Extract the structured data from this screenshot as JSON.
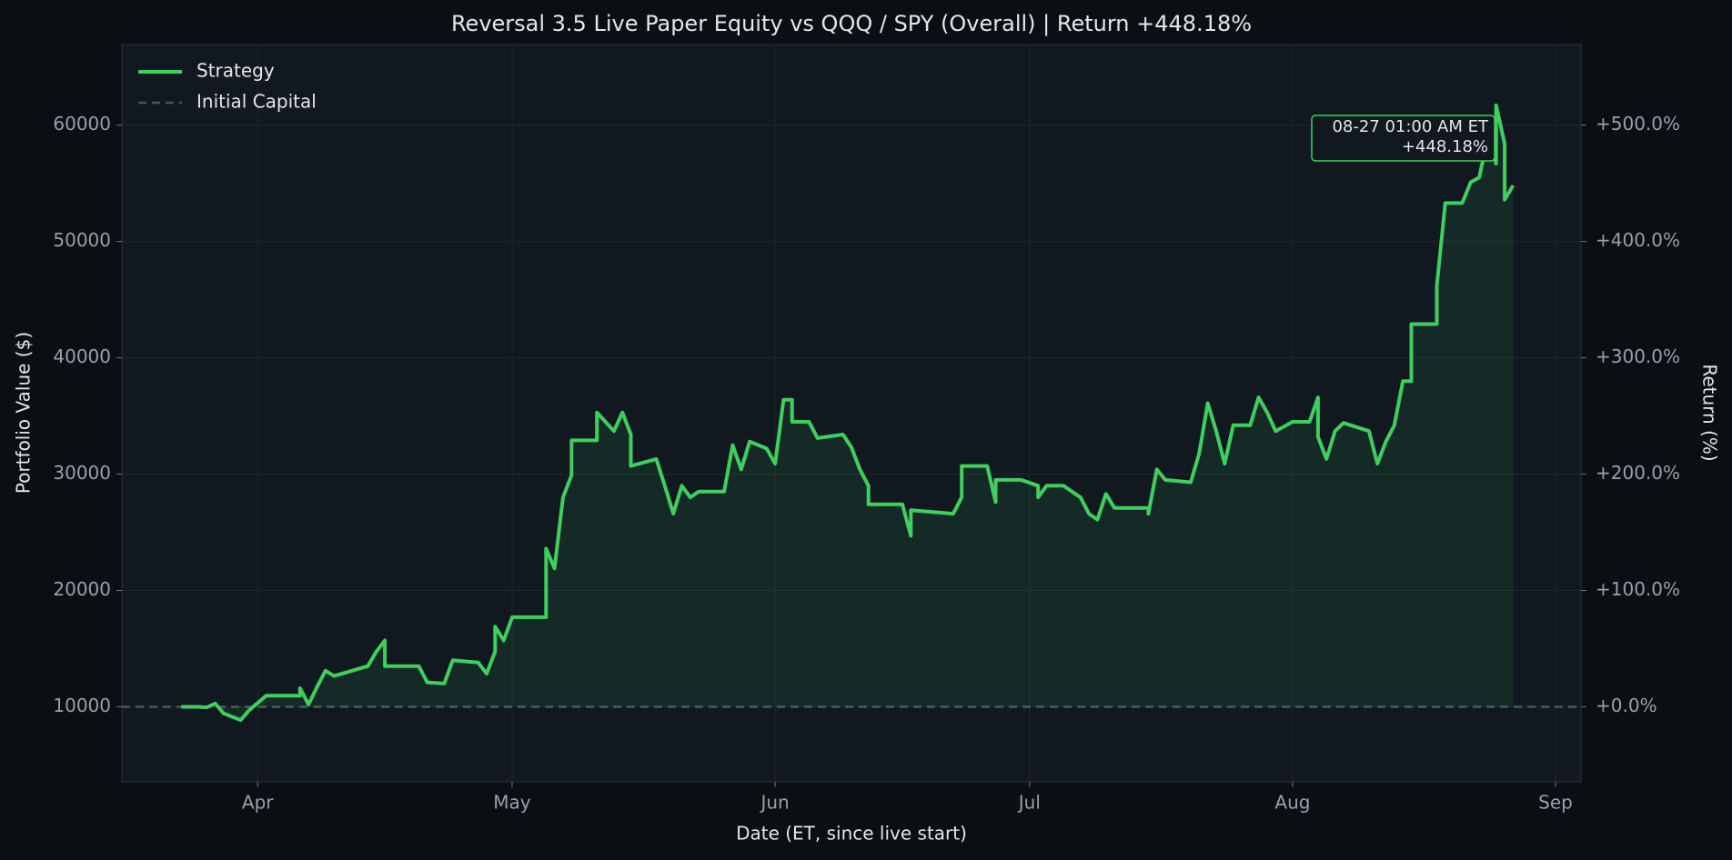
{
  "chart_data": {
    "type": "line",
    "title": "Reversal 3.5 Live Paper Equity vs QQQ / SPY (Overall)  |  Return +448.18%",
    "x_label": "Date (ET, since live start)",
    "y_label": "Portfolio Value ($)",
    "y2_label": "Return (%)",
    "xlim": [
      "03-16",
      "09-04"
    ],
    "xticks": [
      {
        "value": "04-01",
        "label": "Apr"
      },
      {
        "value": "05-01",
        "label": "May"
      },
      {
        "value": "06-01",
        "label": "Jun"
      },
      {
        "value": "07-01",
        "label": "Jul"
      },
      {
        "value": "08-01",
        "label": "Aug"
      },
      {
        "value": "09-01",
        "label": "Sep"
      }
    ],
    "ylim": [
      3550,
      66930
    ],
    "yticks": [
      10000,
      20000,
      30000,
      40000,
      50000,
      60000
    ],
    "y2lim": [
      -64.5,
      569.3
    ],
    "y2ticks": [
      {
        "value": 0,
        "label": "+0.0%"
      },
      {
        "value": 100,
        "label": "+100.0%"
      },
      {
        "value": 200,
        "label": "+200.0%"
      },
      {
        "value": 300,
        "label": "+300.0%"
      },
      {
        "value": 400,
        "label": "+400.0%"
      },
      {
        "value": 500,
        "label": "+500.0%"
      }
    ],
    "grid": true,
    "legend": "upper left",
    "x": [
      "03-23",
      "03-25",
      "03-26",
      "03-27",
      "03-28",
      "03-30",
      "03-31",
      "04-02",
      "04-06",
      "04-06",
      "04-07",
      "04-08",
      "04-09",
      "04-10",
      "04-14",
      "04-15",
      "04-16",
      "04-16",
      "04-20",
      "04-21",
      "04-23",
      "04-24",
      "04-27",
      "04-28",
      "04-29",
      "04-29",
      "04-30",
      "05-01",
      "05-05",
      "05-05",
      "05-06",
      "05-07",
      "05-08",
      "05-08",
      "05-11",
      "05-11",
      "05-13",
      "05-14",
      "05-15",
      "05-15",
      "05-18",
      "05-19",
      "05-20",
      "05-21",
      "05-22",
      "05-23",
      "05-26",
      "05-27",
      "05-28",
      "05-29",
      "05-31",
      "06-01",
      "06-02",
      "06-03",
      "06-03",
      "06-05",
      "06-06",
      "06-09",
      "06-10",
      "06-11",
      "06-12",
      "06-12",
      "06-16",
      "06-17",
      "06-17",
      "06-22",
      "06-23",
      "06-23",
      "06-26",
      "06-27",
      "06-27",
      "06-30",
      "07-02",
      "07-02",
      "07-03",
      "07-05",
      "07-07",
      "07-08",
      "07-09",
      "07-10",
      "07-11",
      "07-15",
      "07-15",
      "07-16",
      "07-17",
      "07-20",
      "07-21",
      "07-22",
      "07-23",
      "07-24",
      "07-25",
      "07-27",
      "07-28",
      "07-29",
      "07-30",
      "08-01",
      "08-03",
      "08-04",
      "08-04",
      "08-05",
      "08-06",
      "08-07",
      "08-10",
      "08-11",
      "08-12",
      "08-13",
      "08-14",
      "08-15",
      "08-15",
      "08-18",
      "08-18",
      "08-19",
      "08-21",
      "08-22",
      "08-23",
      "08-24",
      "08-24",
      "08-25",
      "08-25",
      "08-26",
      "08-26",
      "08-27"
    ],
    "series": [
      {
        "name": "Strategy",
        "color": "#3ecf5e",
        "values": [
          10000,
          10000,
          9950,
          10280,
          9430,
          8860,
          9700,
          10950,
          10950,
          11600,
          10200,
          11700,
          13100,
          12650,
          13500,
          14750,
          15700,
          13500,
          13500,
          12100,
          12000,
          14000,
          13800,
          12850,
          14750,
          16900,
          15700,
          17700,
          17700,
          23600,
          21900,
          28000,
          29900,
          32900,
          32900,
          35300,
          33700,
          35300,
          33400,
          30700,
          31300,
          29000,
          26600,
          29000,
          28000,
          28500,
          28500,
          32500,
          30400,
          32800,
          32200,
          30900,
          36400,
          36400,
          34500,
          34500,
          33100,
          33400,
          32300,
          30400,
          29000,
          27400,
          27400,
          24700,
          26900,
          26600,
          28000,
          30700,
          30700,
          27600,
          29500,
          29500,
          29000,
          28000,
          29000,
          29000,
          28000,
          26600,
          26100,
          28300,
          27100,
          27100,
          26600,
          30400,
          29500,
          29300,
          31800,
          36100,
          33700,
          30900,
          34200,
          34200,
          36600,
          35300,
          33700,
          34500,
          34500,
          36600,
          33200,
          31300,
          33700,
          34400,
          33700,
          30900,
          32800,
          34200,
          38000,
          38000,
          42900,
          42900,
          46200,
          53300,
          53300,
          55100,
          55500,
          58900,
          59300,
          56700,
          61700,
          58400,
          53600,
          54818
        ]
      }
    ],
    "reference_lines": [
      {
        "name": "Initial Capital",
        "value": 10000,
        "color": "#4a5563"
      }
    ],
    "annotation": [
      "08-27 01:00 AM ET",
      "+448.18%"
    ]
  }
}
